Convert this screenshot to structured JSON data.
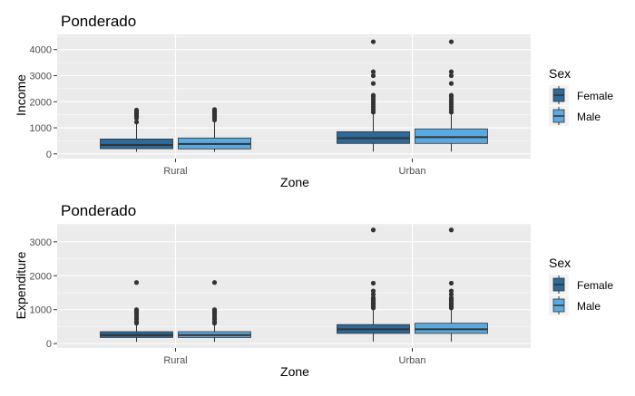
{
  "colors": {
    "panel_bg": "#EBEBEB",
    "grid": "#FFFFFF",
    "axis_text": "#4D4D4D",
    "text": "#000000",
    "box_stroke": "#333333",
    "Female": "#2B6A9A",
    "Male": "#5AAAE0"
  },
  "chart_data": [
    {
      "type": "boxplot",
      "title": "Ponderado",
      "xlabel": "Zone",
      "ylabel": "Income",
      "categories": [
        "Rural",
        "Urban"
      ],
      "ylim": [
        -180,
        4580
      ],
      "yticks": [
        0,
        1000,
        2000,
        3000,
        4000
      ],
      "ytick_labels": [
        "0",
        "1000",
        "2000",
        "3000",
        "4000"
      ],
      "grid": true,
      "legend": {
        "title": "Sex",
        "position": "right",
        "items": [
          "Female",
          "Male"
        ]
      },
      "series": [
        {
          "name": "Female",
          "boxes": [
            {
              "category": "Rural",
              "min": 80,
              "q1": 200,
              "median": 340,
              "q3": 570,
              "max": 1200,
              "outliers": [
                1220,
                1370,
                1420,
                1480,
                1530,
                1580,
                1630,
                1680
              ]
            },
            {
              "category": "Urban",
              "min": 90,
              "q1": 400,
              "median": 600,
              "q3": 850,
              "max": 1530,
              "outliers": [
                1600,
                1700,
                1800,
                1900,
                2000,
                2100,
                2200,
                2250,
                2700,
                3000,
                3150,
                4300
              ]
            }
          ]
        },
        {
          "name": "Male",
          "boxes": [
            {
              "category": "Rural",
              "min": 80,
              "q1": 190,
              "median": 380,
              "q3": 610,
              "max": 1250,
              "outliers": [
                1300,
                1380,
                1450,
                1500,
                1550,
                1600,
                1650,
                1700
              ]
            },
            {
              "category": "Urban",
              "min": 90,
              "q1": 400,
              "median": 640,
              "q3": 960,
              "max": 1530,
              "outliers": [
                1600,
                1700,
                1800,
                1900,
                2000,
                2100,
                2200,
                2250,
                2700,
                3000,
                3150,
                4300
              ]
            }
          ]
        }
      ]
    },
    {
      "type": "boxplot",
      "title": "Ponderado",
      "xlabel": "Zone",
      "ylabel": "Expenditure",
      "categories": [
        "Rural",
        "Urban"
      ],
      "ylim": [
        -130,
        3530
      ],
      "yticks": [
        0,
        1000,
        2000,
        3000
      ],
      "ytick_labels": [
        "0",
        "1000",
        "2000",
        "3000"
      ],
      "grid": true,
      "legend": {
        "title": "Sex",
        "position": "right",
        "items": [
          "Female",
          "Male"
        ]
      },
      "series": [
        {
          "name": "Female",
          "boxes": [
            {
              "category": "Rural",
              "min": 50,
              "q1": 180,
              "median": 250,
              "q3": 350,
              "max": 560,
              "outliers": [
                600,
                650,
                720,
                780,
                850,
                900,
                950,
                1000,
                1800
              ]
            },
            {
              "category": "Urban",
              "min": 60,
              "q1": 300,
              "median": 420,
              "q3": 560,
              "max": 1000,
              "outliers": [
                1050,
                1100,
                1150,
                1200,
                1250,
                1300,
                1350,
                1450,
                1550,
                1780,
                3350
              ]
            }
          ]
        },
        {
          "name": "Male",
          "boxes": [
            {
              "category": "Rural",
              "min": 50,
              "q1": 180,
              "median": 250,
              "q3": 350,
              "max": 560,
              "outliers": [
                600,
                650,
                720,
                780,
                850,
                900,
                950,
                1000,
                1800
              ]
            },
            {
              "category": "Urban",
              "min": 60,
              "q1": 300,
              "median": 420,
              "q3": 600,
              "max": 1000,
              "outliers": [
                1050,
                1100,
                1150,
                1200,
                1250,
                1300,
                1350,
                1450,
                1550,
                1780,
                3350
              ]
            }
          ]
        }
      ]
    }
  ]
}
